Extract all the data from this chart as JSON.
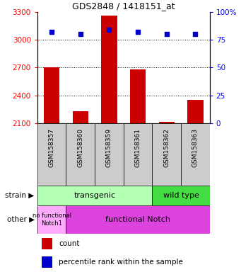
{
  "title": "GDS2848 / 1418151_at",
  "samples": [
    "GSM158357",
    "GSM158360",
    "GSM158359",
    "GSM158361",
    "GSM158362",
    "GSM158363"
  ],
  "counts": [
    2700,
    2230,
    3260,
    2680,
    2115,
    2350
  ],
  "percentiles": [
    82,
    80,
    84,
    82,
    80,
    80
  ],
  "ymin": 2100,
  "ymax": 3300,
  "yticks": [
    2100,
    2400,
    2700,
    3000,
    3300
  ],
  "pct_ticks": [
    0,
    25,
    50,
    75,
    100
  ],
  "bar_color": "#cc0000",
  "dot_color": "#0000cc",
  "bar_bottom": 2100,
  "light_green": "#b3ffb3",
  "dark_green": "#44dd44",
  "magenta": "#dd44dd",
  "light_magenta": "#ffaaff",
  "tick_bg": "#cccccc"
}
